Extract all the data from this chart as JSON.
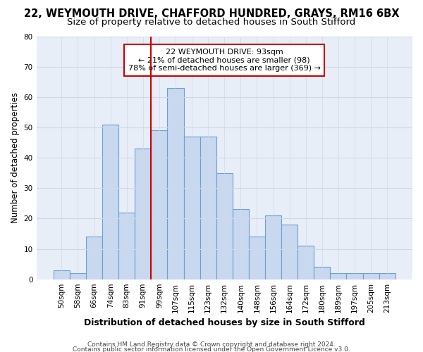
{
  "title1": "22, WEYMOUTH DRIVE, CHAFFORD HUNDRED, GRAYS, RM16 6BX",
  "title2": "Size of property relative to detached houses in South Stifford",
  "xlabel": "Distribution of detached houses by size in South Stifford",
  "ylabel": "Number of detached properties",
  "categories": [
    "50sqm",
    "58sqm",
    "66sqm",
    "74sqm",
    "83sqm",
    "91sqm",
    "99sqm",
    "107sqm",
    "115sqm",
    "123sqm",
    "132sqm",
    "140sqm",
    "148sqm",
    "156sqm",
    "164sqm",
    "172sqm",
    "180sqm",
    "189sqm",
    "197sqm",
    "205sqm",
    "213sqm"
  ],
  "values": [
    3,
    2,
    14,
    51,
    22,
    43,
    49,
    63,
    47,
    47,
    35,
    23,
    14,
    21,
    18,
    11,
    4,
    2,
    2,
    2,
    2
  ],
  "bar_color": "#c8d8ef",
  "bar_edge_color": "#6a9fd8",
  "property_line_label": "22 WEYMOUTH DRIVE: 93sqm",
  "annotation_line1": "← 21% of detached houses are smaller (98)",
  "annotation_line2": "78% of semi-detached houses are larger (369) →",
  "annotation_box_color": "#ffffff",
  "annotation_box_edge": "#cc0000",
  "vline_color": "#cc0000",
  "vline_x": 5.5,
  "ylim": [
    0,
    80
  ],
  "yticks": [
    0,
    10,
    20,
    30,
    40,
    50,
    60,
    70,
    80
  ],
  "background_color": "#ffffff",
  "plot_background": "#e8eef8",
  "grid_color": "#d0d8e8",
  "footer1": "Contains HM Land Registry data © Crown copyright and database right 2024.",
  "footer2": "Contains public sector information licensed under the Open Government Licence v3.0.",
  "title1_fontsize": 10.5,
  "title2_fontsize": 9.5,
  "xlabel_fontsize": 9,
  "ylabel_fontsize": 8.5,
  "tick_fontsize": 7.5,
  "annot_fontsize": 8,
  "footer_fontsize": 6.5
}
